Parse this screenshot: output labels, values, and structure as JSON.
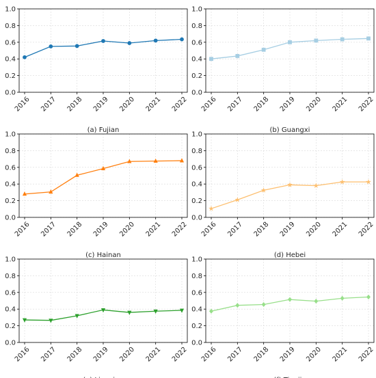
{
  "chart_data": [
    {
      "type": "line",
      "caption": "(a) Fujian",
      "categories": [
        "2016",
        "2017",
        "2018",
        "2019",
        "2020",
        "2021",
        "2022"
      ],
      "values": [
        0.42,
        0.55,
        0.555,
        0.615,
        0.59,
        0.62,
        0.635
      ],
      "ylim": [
        0,
        1.0
      ],
      "yticks": [
        "0.0",
        "0.2",
        "0.4",
        "0.6",
        "0.8",
        "1.0"
      ],
      "color": "#1f78b4",
      "marker": "circle",
      "grid": true
    },
    {
      "type": "line",
      "caption": "(b) Guangxi",
      "categories": [
        "2016",
        "2017",
        "2018",
        "2019",
        "2020",
        "2021",
        "2022"
      ],
      "values": [
        0.4,
        0.435,
        0.51,
        0.6,
        0.62,
        0.635,
        0.645
      ],
      "ylim": [
        0,
        1.0
      ],
      "yticks": [
        "0.0",
        "0.2",
        "0.4",
        "0.6",
        "0.8",
        "1.0"
      ],
      "color": "#a6cee3",
      "marker": "square",
      "grid": true
    },
    {
      "type": "line",
      "caption": "(c) Hainan",
      "categories": [
        "2016",
        "2017",
        "2018",
        "2019",
        "2020",
        "2021",
        "2022"
      ],
      "values": [
        0.28,
        0.305,
        0.505,
        0.585,
        0.67,
        0.675,
        0.68
      ],
      "ylim": [
        0,
        1.0
      ],
      "yticks": [
        "0.0",
        "0.2",
        "0.4",
        "0.6",
        "0.8",
        "1.0"
      ],
      "color": "#ff7f0e",
      "marker": "triangle-up",
      "grid": true
    },
    {
      "type": "line",
      "caption": "(d) Hebei",
      "categories": [
        "2016",
        "2017",
        "2018",
        "2019",
        "2020",
        "2021",
        "2022"
      ],
      "values": [
        0.105,
        0.21,
        0.325,
        0.39,
        0.38,
        0.425,
        0.425
      ],
      "ylim": [
        0,
        1.0
      ],
      "yticks": [
        "0.0",
        "0.2",
        "0.4",
        "0.6",
        "0.8",
        "1.0"
      ],
      "color": "#fdbf6f",
      "marker": "star",
      "grid": true
    },
    {
      "type": "line",
      "caption": "(e) Liaoning",
      "categories": [
        "2016",
        "2017",
        "2018",
        "2019",
        "2020",
        "2021",
        "2022"
      ],
      "values": [
        0.27,
        0.265,
        0.32,
        0.39,
        0.36,
        0.375,
        0.385
      ],
      "ylim": [
        0,
        1.0
      ],
      "yticks": [
        "0.0",
        "0.2",
        "0.4",
        "0.6",
        "0.8",
        "1.0"
      ],
      "color": "#2ca02c",
      "marker": "triangle-down",
      "grid": true
    },
    {
      "type": "line",
      "caption": "(f) Tianjin",
      "categories": [
        "2016",
        "2017",
        "2018",
        "2019",
        "2020",
        "2021",
        "2022"
      ],
      "values": [
        0.375,
        0.445,
        0.455,
        0.515,
        0.495,
        0.53,
        0.545
      ],
      "ylim": [
        0,
        1.0
      ],
      "yticks": [
        "0.0",
        "0.2",
        "0.4",
        "0.6",
        "0.8",
        "1.0"
      ],
      "color": "#98df8a",
      "marker": "diamond",
      "grid": true
    }
  ]
}
